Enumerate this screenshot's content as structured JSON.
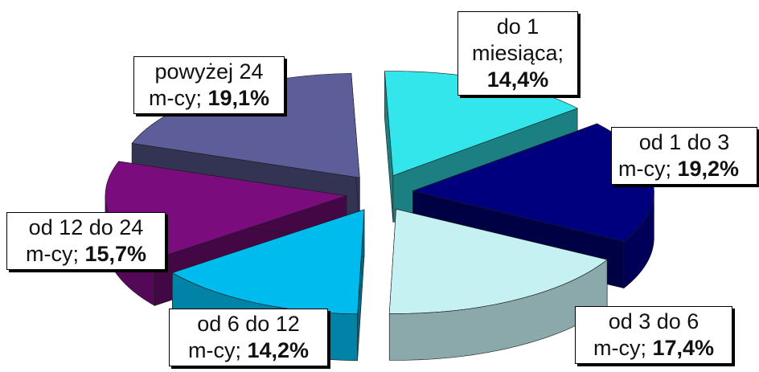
{
  "chart_data": {
    "type": "pie",
    "exploded": true,
    "three_d": true,
    "slices": [
      {
        "label_lines": [
          "do 1",
          "miesiąca;"
        ],
        "value_text": "14,4%",
        "value": 14.4,
        "color": "#33E6EC"
      },
      {
        "label_lines": [
          "od 1 do 3",
          "m-cy;"
        ],
        "value_text": "19,2%",
        "value": 19.2,
        "color": "#00007E"
      },
      {
        "label_lines": [
          "od 3 do 6",
          "m-cy;"
        ],
        "value_text": "17,4%",
        "value": 17.4,
        "color": "#C6F1F3"
      },
      {
        "label_lines": [
          "od 6 do 12",
          "m-cy;"
        ],
        "value_text": "14,2%",
        "value": 14.2,
        "color": "#00BBEE"
      },
      {
        "label_lines": [
          "od 12 do 24",
          "m-cy;"
        ],
        "value_text": "15,7%",
        "value": 15.7,
        "color": "#7A0C7E"
      },
      {
        "label_lines": [
          "powyżej 24",
          "m-cy;"
        ],
        "value_text": "19,1%",
        "value": 19.1,
        "color": "#5D5D99"
      }
    ]
  }
}
